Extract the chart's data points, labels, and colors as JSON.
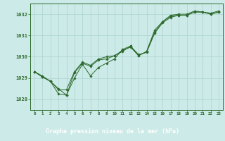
{
  "title": "Graphe pression niveau de la mer (hPa)",
  "bg_color": "#cceae7",
  "plot_bg_color": "#cceae7",
  "label_bg_color": "#3a7a3a",
  "line_color": "#2d6a2d",
  "grid_color": "#aad4d0",
  "title_color": "#ffffff",
  "x_ticks": [
    0,
    1,
    2,
    3,
    4,
    5,
    6,
    7,
    8,
    9,
    10,
    11,
    12,
    13,
    14,
    15,
    16,
    17,
    18,
    19,
    20,
    21,
    22,
    23
  ],
  "ylim": [
    1027.5,
    1032.5
  ],
  "yticks": [
    1028,
    1029,
    1030,
    1031,
    1032
  ],
  "series1": [
    1029.3,
    1029.1,
    1028.85,
    1028.5,
    1028.2,
    1029.25,
    1029.7,
    1029.55,
    1029.85,
    1029.9,
    1030.05,
    1030.25,
    1030.5,
    1030.1,
    1030.2,
    1031.1,
    1031.6,
    1031.85,
    1031.95,
    1031.95,
    1032.1,
    1032.1,
    1032.0,
    1032.1
  ],
  "series2": [
    1029.3,
    1029.05,
    1028.85,
    1028.25,
    1028.2,
    1029.0,
    1029.65,
    1029.1,
    1029.5,
    1029.7,
    1029.9,
    1030.35,
    1030.5,
    1030.05,
    1030.25,
    1031.25,
    1031.65,
    1031.95,
    1032.0,
    1032.0,
    1032.15,
    1032.1,
    1032.05,
    1032.15
  ],
  "series3": [
    1029.3,
    1029.05,
    1028.85,
    1028.45,
    1028.45,
    1029.3,
    1029.75,
    1029.6,
    1029.9,
    1030.0,
    1030.05,
    1030.3,
    1030.45,
    1030.05,
    1030.25,
    1031.15,
    1031.65,
    1031.9,
    1031.95,
    1031.95,
    1032.1,
    1032.1,
    1032.0,
    1032.1
  ]
}
